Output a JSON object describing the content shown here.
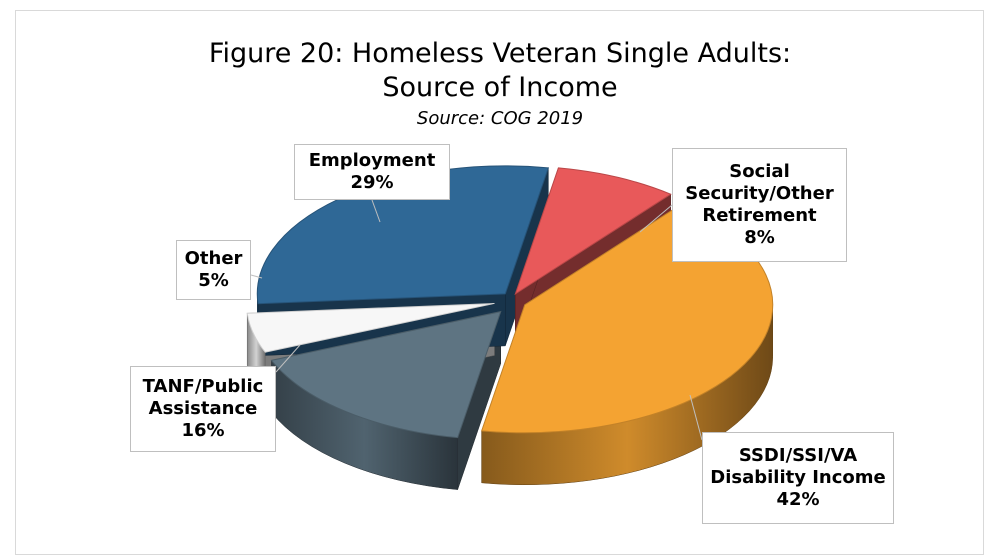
{
  "chart_data": {
    "type": "pie",
    "title_line1": "Figure 20: Homeless Veteran Single Adults:",
    "title_line2": "Source of Income",
    "subtitle": "Source: COG 2019",
    "slices": [
      {
        "key": "social",
        "label_lines": [
          "Social",
          "Security/Other",
          "Retirement"
        ],
        "pct_label": "8%",
        "value": 8,
        "color": "#e8595a"
      },
      {
        "key": "ssdi",
        "label_lines": [
          "SSDI/SSI/VA",
          "Disability Income"
        ],
        "pct_label": "42%",
        "value": 42,
        "color": "#f4a332"
      },
      {
        "key": "tanf",
        "label_lines": [
          "TANF/Public",
          "Assistance"
        ],
        "pct_label": "16%",
        "value": 16,
        "color": "#5e7482"
      },
      {
        "key": "other",
        "label_lines": [
          "Other"
        ],
        "pct_label": "5%",
        "value": 5,
        "color": "#f7f7f7"
      },
      {
        "key": "employment",
        "label_lines": [
          "Employment"
        ],
        "pct_label": "29%",
        "value": 29,
        "color": "#2f6896"
      }
    ]
  }
}
